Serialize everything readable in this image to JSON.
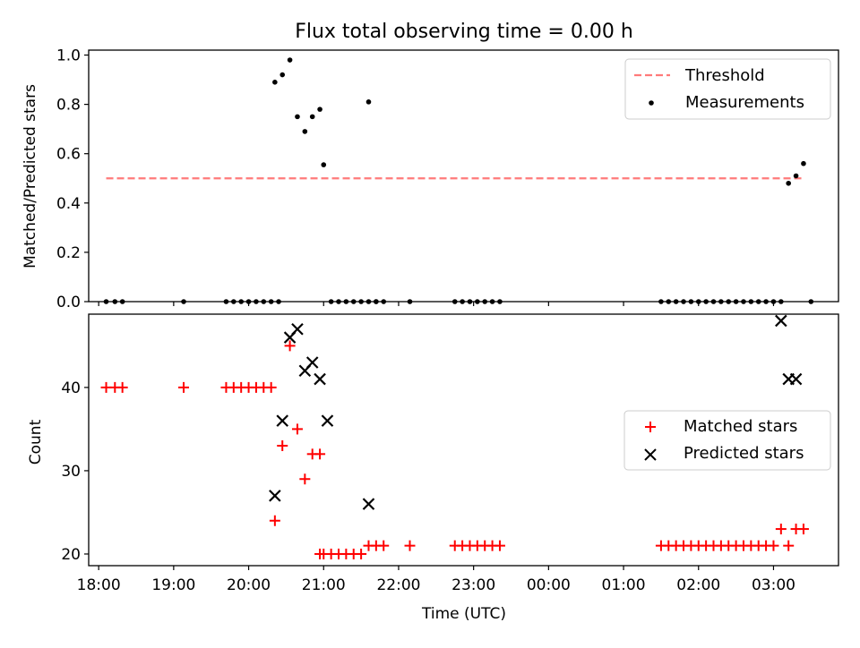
{
  "chart_data": [
    {
      "type": "scatter",
      "title": "Flux total observing time = 0.00 h",
      "ylabel": "Matched/Predicted stars",
      "xlabel": "",
      "xlim": [
        "17:52",
        "03:52"
      ],
      "ylim": [
        0,
        1.02
      ],
      "yticks": [
        "0.0",
        "0.2",
        "0.4",
        "0.6",
        "0.8",
        "1.0"
      ],
      "legend_position": "top-right",
      "legend": [
        "Threshold",
        "Measurements"
      ],
      "series": [
        {
          "name": "Threshold",
          "type": "line",
          "color": "#ff7a7a",
          "x": [
            "18:06",
            "03:24"
          ],
          "y": [
            0.5,
            0.5
          ]
        },
        {
          "name": "Measurements",
          "type": "scatter",
          "color": "#000000",
          "x": [
            "18:06",
            "18:13",
            "18:19",
            "19:08",
            "19:42",
            "19:48",
            "19:54",
            "20:00",
            "20:06",
            "20:12",
            "20:18",
            "20:24",
            "20:21",
            "20:27",
            "20:33",
            "20:39",
            "20:45",
            "20:51",
            "20:57",
            "21:00",
            "21:06",
            "21:12",
            "21:18",
            "21:24",
            "21:30",
            "21:36",
            "21:42",
            "21:36",
            "21:42",
            "21:48",
            "22:09",
            "22:45",
            "22:51",
            "22:57",
            "23:03",
            "23:09",
            "23:15",
            "23:21",
            "01:30",
            "01:36",
            "01:42",
            "01:48",
            "01:54",
            "02:00",
            "02:06",
            "02:12",
            "02:18",
            "02:24",
            "02:30",
            "02:36",
            "02:42",
            "02:48",
            "02:54",
            "03:00",
            "03:06",
            "03:12",
            "03:18",
            "03:24",
            "03:30"
          ],
          "y": [
            0,
            0,
            0,
            0,
            0,
            0,
            0,
            0,
            0,
            0,
            0,
            0,
            0.89,
            0.92,
            0.98,
            0.75,
            0.69,
            0.75,
            0.78,
            0.555,
            0,
            0,
            0,
            0,
            0,
            0,
            0,
            0.81,
            0,
            0,
            0,
            0,
            0,
            0,
            0,
            0,
            0,
            0,
            0,
            0,
            0,
            0,
            0,
            0,
            0,
            0,
            0,
            0,
            0,
            0,
            0,
            0,
            0,
            0,
            0,
            0.48,
            0.51,
            0.56,
            0
          ]
        }
      ]
    },
    {
      "type": "scatter",
      "title": "",
      "ylabel": "Count",
      "xlabel": "Time (UTC)",
      "xlim": [
        "17:52",
        "03:52"
      ],
      "ylim": [
        18.6,
        48.8
      ],
      "yticks": [
        "20",
        "30",
        "40"
      ],
      "xticks": [
        "18:00",
        "19:00",
        "20:00",
        "21:00",
        "22:00",
        "23:00",
        "00:00",
        "01:00",
        "02:00",
        "03:00"
      ],
      "legend_position": "center-right",
      "legend": [
        "Matched stars",
        "Predicted stars"
      ],
      "series": [
        {
          "name": "Matched stars",
          "marker": "+",
          "color": "#ff0000",
          "x": [
            "18:06",
            "18:13",
            "18:19",
            "19:08",
            "19:42",
            "19:48",
            "19:54",
            "20:00",
            "20:06",
            "20:12",
            "20:18",
            "20:21",
            "20:27",
            "20:33",
            "20:39",
            "20:45",
            "20:51",
            "20:57",
            "20:57",
            "21:00",
            "21:06",
            "21:12",
            "21:18",
            "21:24",
            "21:30",
            "21:36",
            "21:42",
            "21:48",
            "22:09",
            "22:45",
            "22:51",
            "22:57",
            "23:03",
            "23:09",
            "23:15",
            "23:21",
            "01:30",
            "01:36",
            "01:42",
            "01:48",
            "01:54",
            "02:00",
            "02:06",
            "02:12",
            "02:18",
            "02:24",
            "02:30",
            "02:36",
            "02:42",
            "02:48",
            "02:54",
            "03:00",
            "03:06",
            "03:12",
            "03:18",
            "03:24"
          ],
          "y": [
            40,
            40,
            40,
            40,
            40,
            40,
            40,
            40,
            40,
            40,
            40,
            24,
            33,
            45,
            35,
            29,
            32,
            32,
            20,
            20,
            20,
            20,
            20,
            20,
            20,
            21,
            21,
            21,
            21,
            21,
            21,
            21,
            21,
            21,
            21,
            21,
            21,
            21,
            21,
            21,
            21,
            21,
            21,
            21,
            21,
            21,
            21,
            21,
            21,
            21,
            21,
            21,
            23,
            21,
            23,
            23
          ]
        },
        {
          "name": "Predicted stars",
          "marker": "x",
          "color": "#000000",
          "x": [
            "20:21",
            "20:27",
            "20:33",
            "20:39",
            "20:45",
            "20:51",
            "20:57",
            "21:03",
            "21:36",
            "03:06",
            "03:12",
            "03:18"
          ],
          "y": [
            27,
            36,
            46,
            47,
            42,
            43,
            41,
            36,
            26,
            48,
            41,
            41
          ]
        }
      ]
    }
  ]
}
